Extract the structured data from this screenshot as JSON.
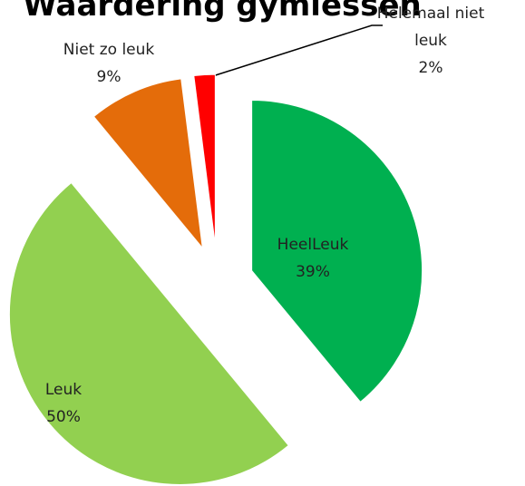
{
  "chart_data": {
    "type": "pie",
    "title": "Waardering gymlessen",
    "categories": [
      "HeelLeuk",
      "Leuk",
      "Niet zo leuk",
      "Helemaal niet leuk"
    ],
    "values": [
      39,
      50,
      9,
      2
    ],
    "value_labels": [
      "39%",
      "50%",
      "9%",
      "2%"
    ],
    "colors": [
      "#00b050",
      "#92d050",
      "#e46c0a",
      "#ff0000"
    ]
  }
}
